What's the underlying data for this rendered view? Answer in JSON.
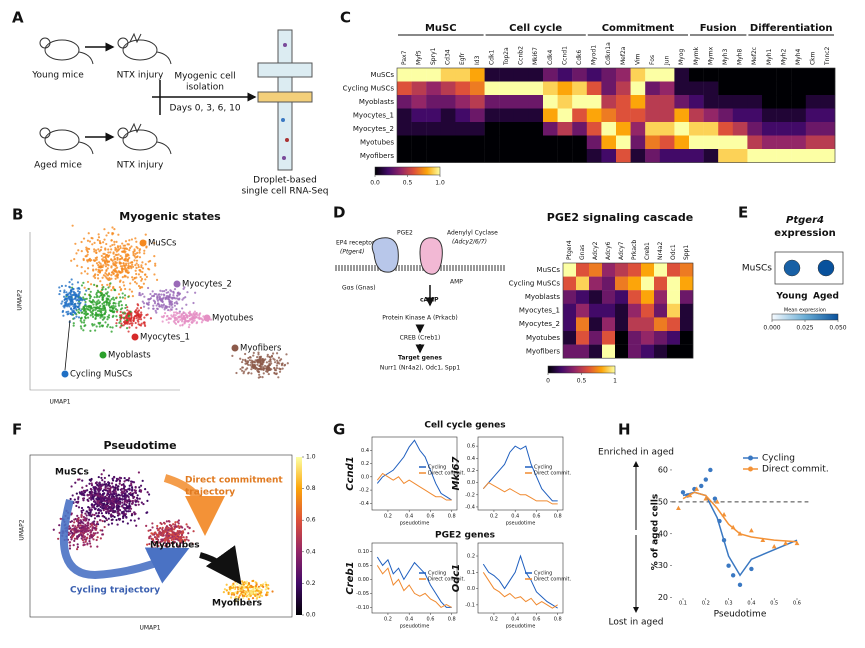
{
  "panel_a": {
    "letter": "A",
    "young": "Young mice",
    "injury_1": "NTX injury",
    "aged": "Aged mice",
    "injury_2": "NTX injury",
    "isolation_1": "Myogenic cell",
    "isolation_2": "isolation",
    "days": "Days 0, 3, 6, 10",
    "method_1": "Droplet-based",
    "method_2": "single cell RNA-Seq"
  },
  "umap_b": {
    "letter": "B",
    "title": "Myogenic states",
    "ylabel": "UMAP2",
    "xlabel": "UMAP1",
    "clusters": [
      "MuSCs",
      "Myocytes_2",
      "Myotubes",
      "Myocytes_1",
      "Myoblasts",
      "Myofibers",
      "Cycling MuSCs"
    ]
  },
  "pathway_d": {
    "letter": "D",
    "ligand": "PGE2",
    "receptor": "EP4 receptor",
    "receptor_gene": "(Ptger4)",
    "cyclase": "Adenylyl Cyclase",
    "cyclase_gene": "(Adcy2/6/7)",
    "amp": "AMP",
    "gprotein": "Gαs (Gnas)",
    "camp": "cAMP",
    "pka": "Protein Kinase A (Prkacb)",
    "creb": "CREB (Creb1)",
    "targets": "Target genes",
    "target_list": "Nurr1 (Nr4a2), Odc1, Spp1"
  },
  "umap_f": {
    "letter": "F",
    "title": "Pseudotime",
    "start": "MuSCs",
    "direct_1": "Direct commitment",
    "direct_2": "trajectory",
    "mid": "Myotubes",
    "cycling": "Cycling trajectory",
    "end": "Myofibers",
    "ylabel": "UMAP2",
    "xlabel": "UMAP1",
    "clim": [
      0,
      1
    ],
    "cticks": [
      {
        "value": 0,
        "label": "0.0"
      },
      0.2,
      0.4,
      0.6,
      0.8,
      {
        "value": 1,
        "label": "1.0"
      }
    ]
  },
  "panel_g": {
    "letter": "G",
    "title_1": "Cell cycle genes",
    "title_2": "PGE2 genes"
  },
  "chart_data": [
    {
      "type": "heatmap",
      "panel": "C",
      "groups": [
        {
          "name": "MuSC",
          "genes": [
            "Pax7",
            "Myf5",
            "Spry1",
            "Cd34",
            "Egfr",
            "Id3"
          ]
        },
        {
          "name": "Cell cycle",
          "genes": [
            "Cdk1",
            "Top2a",
            "Ccnb2",
            "Mki67",
            "Cdk4",
            "Ccnd1",
            "Cdk6"
          ]
        },
        {
          "name": "Commitment",
          "genes": [
            "Myod1",
            "Cdkn1a",
            "Mef2a",
            "Vim",
            "Fos",
            "Jun",
            "Myog"
          ]
        },
        {
          "name": "Fusion",
          "genes": [
            "Mymk",
            "Mymx",
            "Myh3",
            "Myh8"
          ]
        },
        {
          "name": "Differentiation",
          "genes": [
            "Mef2c",
            "Myh1",
            "Myh2",
            "Myh4",
            "Ckm",
            "Tnnc2"
          ]
        }
      ],
      "rows": [
        "MuSCs",
        "Cycling MuSCs",
        "Myoblasts",
        "Myocytes_1",
        "Myocytes_2",
        "Myotubes",
        "Myofibers"
      ],
      "values": [
        [
          1,
          1,
          1,
          0.9,
          0.9,
          0.8,
          0.1,
          0.1,
          0.1,
          0.1,
          0.3,
          0.2,
          0.3,
          0.2,
          0.3,
          0.4,
          0.9,
          1,
          1,
          0.1,
          0,
          0,
          0,
          0,
          0,
          0,
          0,
          0,
          0,
          0
        ],
        [
          0.6,
          0.5,
          0.4,
          0.5,
          0.6,
          0.7,
          1,
          1,
          1,
          1,
          0.9,
          0.8,
          0.9,
          0.6,
          0.3,
          0.5,
          1,
          0.3,
          0.4,
          0.1,
          0.1,
          0.1,
          0,
          0,
          0,
          0,
          0,
          0,
          0,
          0
        ],
        [
          0.3,
          0.4,
          0.3,
          0.3,
          0.4,
          0.5,
          0.3,
          0.3,
          0.3,
          0.3,
          1,
          0.9,
          1,
          1,
          0.5,
          0.6,
          0.8,
          0.5,
          0.5,
          0.3,
          0.2,
          0.1,
          0.1,
          0.1,
          0.1,
          0,
          0,
          0,
          0.1,
          0.1
        ],
        [
          0.1,
          0.2,
          0.2,
          0.1,
          0.2,
          0.3,
          0.1,
          0.1,
          0.1,
          0.1,
          0.8,
          1,
          0.6,
          0.8,
          0.7,
          0.6,
          0.6,
          0.5,
          0.5,
          0.8,
          0.5,
          0.4,
          0.3,
          0.2,
          0.2,
          0.1,
          0.1,
          0.1,
          0.2,
          0.2
        ],
        [
          0.1,
          0.1,
          0.1,
          0.1,
          0.1,
          0.1,
          0,
          0,
          0,
          0,
          0.3,
          0.5,
          0.3,
          0.6,
          1,
          0.8,
          0.4,
          0.9,
          0.9,
          1,
          0.9,
          0.9,
          0.6,
          0.5,
          0.3,
          0.2,
          0.2,
          0.2,
          0.3,
          0.3
        ],
        [
          0,
          0,
          0,
          0,
          0,
          0,
          0,
          0,
          0,
          0,
          0,
          0,
          0,
          0.3,
          0.8,
          1,
          0.3,
          0.7,
          0.6,
          0.8,
          1,
          1,
          1,
          1,
          0.5,
          0.4,
          0.4,
          0.4,
          0.5,
          0.5
        ],
        [
          0,
          0,
          0,
          0,
          0,
          0,
          0,
          0,
          0,
          0,
          0,
          0,
          0,
          0.1,
          0.2,
          0.6,
          0.1,
          0.3,
          0.2,
          0.2,
          0.2,
          0.1,
          0.9,
          0.9,
          1,
          1,
          1,
          1,
          1,
          1
        ]
      ],
      "colormap": [
        "#000004",
        "#420a68",
        "#932667",
        "#dd513a",
        "#fca50a",
        "#fcffa4"
      ],
      "clim": [
        0,
        1
      ],
      "cticks": [
        {
          "value": 0,
          "label": "0.0"
        },
        0.5,
        {
          "value": 1,
          "label": "1.0"
        }
      ]
    },
    {
      "type": "heatmap",
      "panel": "D",
      "title": "PGE2 signaling cascade",
      "columns": [
        "Ptger4",
        "Gnas",
        "Adcy2",
        "Adcy6",
        "Adcy7",
        "Prkacb",
        "Creb1",
        "Nr4a2",
        "Odc1",
        "Spp1"
      ],
      "rows": [
        "MuSCs",
        "Cycling MuSCs",
        "Myoblasts",
        "Myocytes_1",
        "Myocytes_2",
        "Myotubes",
        "Myofibers"
      ],
      "values": [
        [
          1,
          0.6,
          0.7,
          0.4,
          0.5,
          0.6,
          0.8,
          1,
          0.6,
          0.7
        ],
        [
          0.6,
          0.9,
          0.4,
          0.3,
          0.7,
          0.8,
          1,
          0.6,
          1,
          0.8
        ],
        [
          0.3,
          0.2,
          0.1,
          0.3,
          0.2,
          0.6,
          0.8,
          0.4,
          1,
          0.3
        ],
        [
          0.2,
          0.4,
          0.2,
          0.2,
          0.1,
          0.4,
          0.6,
          0.3,
          0.9,
          0.1
        ],
        [
          0.2,
          0.7,
          0.1,
          0.4,
          0.1,
          0.5,
          0.5,
          0.7,
          0.6,
          0.1
        ],
        [
          0.1,
          0.6,
          0.3,
          0.6,
          0,
          0.3,
          0.4,
          0.3,
          0.2,
          0
        ],
        [
          0.3,
          0.3,
          0.1,
          1,
          0,
          0.3,
          0.2,
          0.1,
          0,
          0
        ]
      ],
      "colormap": [
        "#000004",
        "#420a68",
        "#932667",
        "#dd513a",
        "#fca50a",
        "#fcffa4"
      ],
      "clim": [
        0,
        1
      ],
      "cticks": [
        0,
        0.5,
        1
      ]
    },
    {
      "type": "dot",
      "panel": "E",
      "title": "Ptger4",
      "subtitle": "expression",
      "rows": [
        "MuSCs"
      ],
      "columns": [
        "Young",
        "Aged"
      ],
      "values": [
        [
          0.046,
          0.05
        ]
      ],
      "colormap": [
        "#f7fbff",
        "#6baed6",
        "#08519c"
      ],
      "clabel": "Mean expression",
      "clim": [
        0,
        0.05
      ],
      "cticks": [
        {
          "value": 0,
          "label": "0.000"
        },
        {
          "value": 0.025,
          "label": "0.025"
        },
        {
          "value": 0.05,
          "label": "0.050"
        }
      ]
    },
    {
      "type": "line",
      "ylabel": "Ccnd1",
      "xlabel": "pseudotime",
      "x": [
        0.1,
        0.15,
        0.2,
        0.25,
        0.3,
        0.35,
        0.4,
        0.45,
        0.5,
        0.55,
        0.6,
        0.65,
        0.7,
        0.75,
        0.8
      ],
      "series": [
        {
          "name": "Cycling",
          "color": "#1f5fbf",
          "values": [
            -0.1,
            0,
            0.05,
            0.1,
            0.2,
            0.3,
            0.45,
            0.55,
            0.4,
            0.3,
            0.1,
            -0.1,
            -0.25,
            -0.3,
            -0.35
          ]
        },
        {
          "name": "Direct commit.",
          "color": "#f08a30",
          "values": [
            -0.05,
            0.05,
            0,
            -0.05,
            0,
            -0.1,
            -0.05,
            -0.1,
            -0.15,
            -0.2,
            -0.25,
            -0.3,
            -0.3,
            -0.35,
            -0.35
          ]
        }
      ],
      "xlim": [
        0.05,
        0.85
      ],
      "xticks": [
        0.2,
        0.4,
        0.6,
        0.8
      ],
      "ylim": [
        -0.5,
        0.6
      ],
      "yticks": [
        -0.4,
        -0.2,
        {
          "value": 0,
          "label": "0.0"
        },
        0.2,
        0.4
      ]
    },
    {
      "type": "line",
      "ylabel": "Mki67",
      "xlabel": "pseudotime",
      "x": [
        0.1,
        0.15,
        0.2,
        0.25,
        0.3,
        0.35,
        0.4,
        0.45,
        0.5,
        0.55,
        0.6,
        0.65,
        0.7,
        0.75,
        0.8
      ],
      "series": [
        {
          "name": "Cycling",
          "color": "#1f5fbf",
          "values": [
            -0.1,
            0,
            0.1,
            0.2,
            0.3,
            0.5,
            0.6,
            0.55,
            0.6,
            0.3,
            0.1,
            -0.1,
            -0.2,
            -0.3,
            -0.3
          ]
        },
        {
          "name": "Direct commit.",
          "color": "#f08a30",
          "values": [
            -0.1,
            0,
            -0.05,
            -0.1,
            -0.15,
            -0.1,
            -0.15,
            -0.2,
            -0.2,
            -0.25,
            -0.3,
            -0.3,
            -0.3,
            -0.35,
            -0.35
          ]
        }
      ],
      "xlim": [
        0.05,
        0.85
      ],
      "xticks": [
        0.2,
        0.4,
        0.6,
        0.8
      ],
      "ylim": [
        -0.45,
        0.75
      ],
      "yticks": [
        -0.4,
        -0.2,
        {
          "value": 0,
          "label": "0.0"
        },
        0.2,
        0.4,
        0.6
      ]
    },
    {
      "type": "line",
      "ylabel": "Creb1",
      "xlabel": "pseudotime",
      "x": [
        0.1,
        0.15,
        0.2,
        0.25,
        0.3,
        0.35,
        0.4,
        0.45,
        0.5,
        0.55,
        0.6,
        0.65,
        0.7,
        0.75,
        0.8
      ],
      "series": [
        {
          "name": "Cycling",
          "color": "#1f5fbf",
          "values": [
            0.08,
            0.05,
            0.07,
            0.02,
            0.04,
            0,
            0.03,
            0.06,
            0.04,
            0.02,
            -0.02,
            -0.05,
            -0.08,
            -0.1,
            -0.1
          ]
        },
        {
          "name": "Direct commit.",
          "color": "#f08a30",
          "values": [
            0.05,
            0.02,
            0.04,
            -0.02,
            0,
            -0.04,
            -0.02,
            -0.05,
            -0.06,
            -0.05,
            -0.07,
            -0.08,
            -0.1,
            -0.09,
            -0.1
          ]
        }
      ],
      "xlim": [
        0.05,
        0.85
      ],
      "xticks": [
        0.2,
        0.4,
        0.6,
        0.8
      ],
      "ylim": [
        -0.12,
        0.13
      ],
      "yticks": [
        {
          "value": -0.1,
          "label": "-0.10"
        },
        -0.05,
        {
          "value": 0,
          "label": "0.00"
        },
        0.05,
        {
          "value": 0.1,
          "label": "0.10"
        }
      ]
    },
    {
      "type": "line",
      "ylabel": "Odc1",
      "xlabel": "pseudotime",
      "x": [
        0.1,
        0.15,
        0.2,
        0.25,
        0.3,
        0.35,
        0.4,
        0.45,
        0.5,
        0.55,
        0.6,
        0.65,
        0.7,
        0.75,
        0.8
      ],
      "series": [
        {
          "name": "Cycling",
          "color": "#1f5fbf",
          "values": [
            0.15,
            0.1,
            0.08,
            0.05,
            0,
            0.05,
            0.1,
            0.2,
            0.1,
            0.05,
            -0.02,
            -0.05,
            -0.08,
            -0.1,
            -0.12
          ]
        },
        {
          "name": "Direct commit.",
          "color": "#f08a30",
          "values": [
            0.1,
            0.05,
            0,
            -0.02,
            -0.05,
            -0.03,
            -0.06,
            -0.05,
            -0.08,
            -0.06,
            -0.1,
            -0.08,
            -0.1,
            -0.12,
            -0.1
          ]
        }
      ],
      "xlim": [
        0.05,
        0.85
      ],
      "xticks": [
        0.2,
        0.4,
        0.6,
        0.8
      ],
      "ylim": [
        -0.15,
        0.28
      ],
      "yticks": [
        -0.1,
        {
          "value": 0,
          "label": "0.0"
        },
        0.1,
        0.2
      ]
    },
    {
      "type": "scatter",
      "panel": "H",
      "ylabel": "% of aged cells",
      "xlabel": "Pseudotime",
      "top_note": "Enriched in aged",
      "bottom_note": "Lost in aged",
      "series": [
        {
          "name": "Cycling",
          "color": "#3a78c2",
          "x": [
            0.1,
            0.12,
            0.15,
            0.18,
            0.2,
            0.22,
            0.24,
            0.26,
            0.28,
            0.3,
            0.32,
            0.35,
            0.4
          ],
          "values": [
            53,
            52,
            54,
            55,
            57,
            60,
            51,
            44,
            38,
            30,
            27,
            24,
            29
          ],
          "curve_x": [
            0.1,
            0.15,
            0.2,
            0.25,
            0.3,
            0.35,
            0.4,
            0.5,
            0.6
          ],
          "curve": [
            52,
            53,
            52,
            45,
            33,
            27,
            32,
            35,
            38
          ]
        },
        {
          "name": "Direct commit.",
          "color": "#f39237",
          "x": [
            0.08,
            0.13,
            0.16,
            0.2,
            0.25,
            0.28,
            0.32,
            0.35,
            0.4,
            0.45,
            0.5,
            0.55,
            0.6
          ],
          "values": [
            48,
            52,
            54,
            51,
            50,
            46,
            42,
            40,
            41,
            38,
            36,
            37,
            37
          ],
          "curve_x": [
            0.1,
            0.15,
            0.2,
            0.25,
            0.3,
            0.35,
            0.4,
            0.5,
            0.6
          ],
          "curve": [
            51,
            53,
            52,
            48,
            43,
            40,
            39,
            38,
            37.5
          ]
        }
      ],
      "reference": 50,
      "xlim": [
        0.05,
        0.65
      ],
      "xticks": [
        0.1,
        0.2,
        0.3,
        0.4,
        0.5,
        0.6
      ],
      "ylim": [
        18,
        65
      ],
      "yticks": [
        20,
        30,
        40,
        50,
        60
      ]
    }
  ]
}
